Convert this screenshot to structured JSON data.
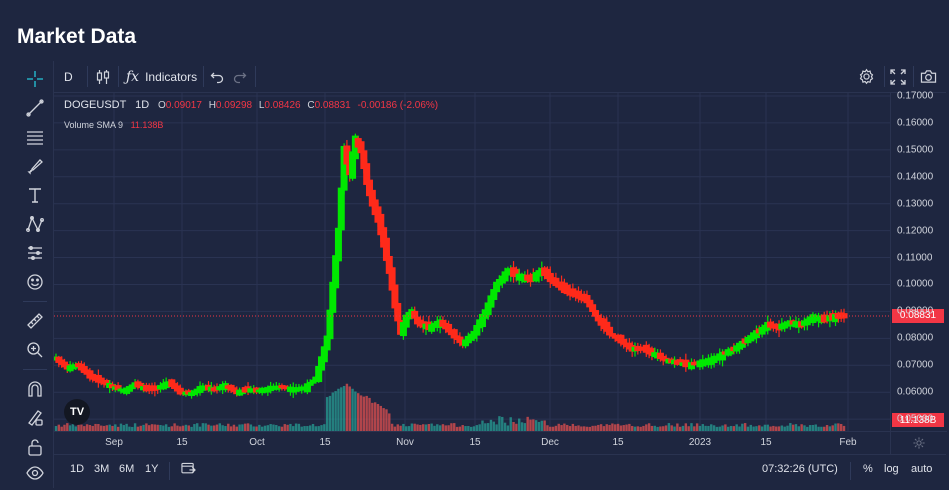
{
  "page": {
    "title": "Market Data"
  },
  "toolbar": {
    "interval": "D",
    "chart_type_icon": "candles-icon",
    "indicators_icon": "fx-icon",
    "indicators_label": "Indicators",
    "undo_icon": "undo-icon",
    "redo_icon": "redo-icon",
    "settings_icon": "gear-icon",
    "fullscreen_icon": "fullscreen-icon",
    "screenshot_icon": "camera-icon"
  },
  "left_tools": [
    "crosshair-icon",
    "trend-line-icon",
    "fib-icon",
    "brush-icon",
    "text-icon",
    "pattern-icon",
    "forecast-icon",
    "emoji-icon",
    "ruler-icon",
    "zoom-in-icon",
    "magnet-icon",
    "lock-drawing-icon",
    "lock-icon",
    "eye-icon"
  ],
  "legend": {
    "symbol": "DOGEUSDT",
    "interval": "1D",
    "o_label": "O",
    "o": "0.09017",
    "h_label": "H",
    "h": "0.09298",
    "l_label": "L",
    "l": "0.08426",
    "c_label": "C",
    "c": "0.08831",
    "change": "-0.00186 (-2.06%)",
    "volume_label": "Volume SMA 9",
    "volume_value": "11.138B",
    "logo_text": "TV"
  },
  "colors": {
    "up": "#00e800",
    "down": "#ff2a1a",
    "vol_up": "#26a69a",
    "vol_down": "#ef5350",
    "last_price": "#f23645",
    "background": "#1e2640",
    "grid": "#2a3352"
  },
  "bottom": {
    "ranges": [
      "1D",
      "3M",
      "6M",
      "1Y"
    ],
    "compare_icon": "date-range-icon",
    "time": "07:32:26 (UTC)",
    "percent": "%",
    "log": "log",
    "auto": "auto"
  },
  "chart_data": {
    "type": "candlestick",
    "symbol": "DOGEUSDT",
    "interval": "1D",
    "y_ticks": [
      "0.17000",
      "0.16000",
      "0.15000",
      "0.14000",
      "0.13000",
      "0.12000",
      "0.11000",
      "0.10000",
      "0.09000",
      "0.08000",
      "0.07000",
      "0.06000",
      "0.05000"
    ],
    "ylim": [
      0.0467,
      0.17
    ],
    "x_labels": [
      "Sep",
      "15",
      "Oct",
      "15",
      "Nov",
      "15",
      "Dec",
      "15",
      "2023",
      "15",
      "Feb"
    ],
    "last_price": "0.08831",
    "volume_last": "11.138B",
    "close_path": [
      [
        0,
        0.0725
      ],
      [
        4,
        0.069
      ],
      [
        8,
        0.07
      ],
      [
        12,
        0.066
      ],
      [
        16,
        0.064
      ],
      [
        20,
        0.062
      ],
      [
        24,
        0.0605
      ],
      [
        28,
        0.063
      ],
      [
        32,
        0.061
      ],
      [
        36,
        0.0615
      ],
      [
        40,
        0.0635
      ],
      [
        44,
        0.06
      ],
      [
        48,
        0.0595
      ],
      [
        52,
        0.062
      ],
      [
        56,
        0.061
      ],
      [
        60,
        0.0625
      ],
      [
        64,
        0.06
      ],
      [
        68,
        0.061
      ],
      [
        72,
        0.0605
      ],
      [
        76,
        0.0615
      ],
      [
        80,
        0.062
      ],
      [
        84,
        0.061
      ],
      [
        88,
        0.0615
      ],
      [
        92,
        0.065
      ],
      [
        96,
        0.08
      ],
      [
        100,
        0.12
      ],
      [
        102,
        0.15
      ],
      [
        104,
        0.142
      ],
      [
        106,
        0.154
      ],
      [
        108,
        0.15
      ],
      [
        110,
        0.138
      ],
      [
        112,
        0.13
      ],
      [
        114,
        0.124
      ],
      [
        116,
        0.115
      ],
      [
        118,
        0.105
      ],
      [
        120,
        0.092
      ],
      [
        122,
        0.082
      ],
      [
        124,
        0.088
      ],
      [
        126,
        0.09
      ],
      [
        128,
        0.086
      ],
      [
        132,
        0.084
      ],
      [
        136,
        0.086
      ],
      [
        140,
        0.082
      ],
      [
        144,
        0.078
      ],
      [
        148,
        0.082
      ],
      [
        152,
        0.09
      ],
      [
        156,
        0.1
      ],
      [
        160,
        0.105
      ],
      [
        164,
        0.103
      ],
      [
        168,
        0.102
      ],
      [
        172,
        0.105
      ],
      [
        176,
        0.101
      ],
      [
        180,
        0.098
      ],
      [
        184,
        0.096
      ],
      [
        188,
        0.094
      ],
      [
        192,
        0.087
      ],
      [
        196,
        0.082
      ],
      [
        200,
        0.079
      ],
      [
        204,
        0.076
      ],
      [
        208,
        0.076
      ],
      [
        212,
        0.074
      ],
      [
        216,
        0.072
      ],
      [
        220,
        0.071
      ],
      [
        224,
        0.07
      ],
      [
        228,
        0.071
      ],
      [
        232,
        0.072
      ],
      [
        236,
        0.074
      ],
      [
        240,
        0.076
      ],
      [
        244,
        0.079
      ],
      [
        248,
        0.082
      ],
      [
        252,
        0.085
      ],
      [
        256,
        0.084
      ],
      [
        260,
        0.086
      ],
      [
        264,
        0.085
      ],
      [
        268,
        0.088
      ],
      [
        272,
        0.087
      ],
      [
        276,
        0.088
      ],
      [
        279,
        0.0883
      ]
    ]
  }
}
